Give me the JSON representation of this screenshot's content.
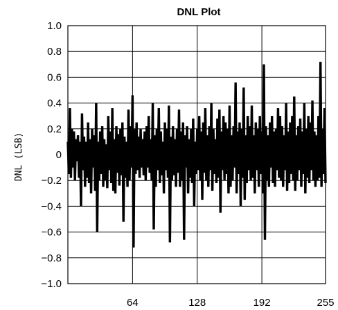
{
  "chart_data": {
    "type": "line",
    "title": "DNL Plot",
    "xlabel": "",
    "ylabel": "DNL (LSB)",
    "xlim": [
      0,
      255
    ],
    "ylim": [
      -1.0,
      1.0
    ],
    "grid": true,
    "legend": "none",
    "x_ticks": [
      {
        "value": 64,
        "label": "64"
      },
      {
        "value": 128,
        "label": "128"
      },
      {
        "value": 192,
        "label": "192"
      },
      {
        "value": 255,
        "label": "255"
      }
    ],
    "y_ticks": [
      {
        "value": 1.0,
        "label": "1.0"
      },
      {
        "value": 0.8,
        "label": "0.8"
      },
      {
        "value": 0.6,
        "label": "0.6"
      },
      {
        "value": 0.4,
        "label": "0.4"
      },
      {
        "value": 0.2,
        "label": "0.2"
      },
      {
        "value": 0,
        "label": "0"
      },
      {
        "value": -0.2,
        "label": "-0.2"
      },
      {
        "value": -0.4,
        "label": "-0.4"
      },
      {
        "value": -0.6,
        "label": "-0.6"
      },
      {
        "value": -0.8,
        "label": "-0.8"
      },
      {
        "value": -1.0,
        "label": "-1.0"
      }
    ],
    "series": [
      {
        "values": [
          0.1,
          -0.15,
          0.36,
          -0.18,
          0.2,
          -0.1,
          0.18,
          -0.2,
          0.12,
          -0.05,
          0.15,
          -0.18,
          0.1,
          -0.4,
          0.32,
          -0.12,
          0.14,
          -0.25,
          0.1,
          -0.18,
          0.25,
          -0.22,
          0.12,
          -0.3,
          0.2,
          -0.1,
          0.15,
          -0.28,
          0.4,
          -0.6,
          0.1,
          -0.2,
          0.18,
          -0.15,
          0.22,
          -0.25,
          0.12,
          -0.2,
          0.08,
          -0.26,
          0.3,
          -0.12,
          0.18,
          -0.22,
          0.36,
          -0.28,
          0.12,
          -0.3,
          0.22,
          -0.14,
          0.16,
          -0.24,
          0.2,
          -0.16,
          0.25,
          -0.52,
          0.14,
          -0.18,
          0.1,
          -0.25,
          0.35,
          -0.2,
          0.22,
          -0.1,
          0.46,
          -0.72,
          0.2,
          -0.15,
          0.25,
          -0.12,
          0.14,
          -0.18,
          0.2,
          -0.1,
          0.12,
          -0.16,
          0.18,
          -0.2,
          0.22,
          -0.1,
          0.3,
          -0.14,
          0.12,
          -0.2,
          0.4,
          -0.58,
          0.15,
          -0.25,
          0.2,
          -0.12,
          0.36,
          -0.22,
          0.18,
          -0.16,
          0.1,
          -0.3,
          0.25,
          -0.12,
          0.2,
          -0.18,
          0.38,
          -0.68,
          0.14,
          -0.2,
          0.22,
          -0.16,
          0.12,
          -0.25,
          0.2,
          -0.14,
          0.35,
          -0.25,
          0.18,
          -0.2,
          0.25,
          -0.66,
          0.15,
          -0.1,
          0.22,
          -0.3,
          0.12,
          -0.18,
          0.2,
          -0.22,
          0.28,
          -0.4,
          0.1,
          -0.15,
          0.2,
          -0.12,
          0.3,
          -0.2,
          0.18,
          -0.35,
          0.25,
          -0.14,
          0.36,
          -0.2,
          0.15,
          -0.25,
          0.22,
          -0.12,
          0.4,
          -0.28,
          0.2,
          -0.15,
          0.12,
          -0.22,
          0.28,
          -0.18,
          0.35,
          -0.45,
          0.18,
          -0.12,
          0.3,
          -0.2,
          0.25,
          -0.15,
          0.2,
          -0.3,
          0.38,
          -0.25,
          0.15,
          -0.2,
          0.22,
          -0.1,
          0.56,
          -0.3,
          0.18,
          -0.15,
          0.25,
          -0.4,
          0.2,
          -0.18,
          0.52,
          -0.35,
          0.15,
          -0.22,
          0.3,
          -0.12,
          0.22,
          -0.2,
          0.38,
          -0.18,
          0.15,
          -0.3,
          0.25,
          -0.12,
          0.2,
          -0.25,
          0.3,
          -0.15,
          0.18,
          -0.3,
          0.7,
          -0.66,
          0.22,
          -0.2,
          0.15,
          -0.25,
          0.25,
          -0.1,
          0.3,
          -0.22,
          0.18,
          -0.25,
          0.2,
          -0.12,
          0.36,
          -0.18,
          0.3,
          -0.2,
          0.22,
          -0.25,
          0.15,
          -0.12,
          0.4,
          -0.28,
          0.18,
          -0.22,
          0.25,
          -0.15,
          0.3,
          -0.2,
          0.45,
          -0.28,
          0.15,
          -0.2,
          0.22,
          -0.12,
          0.28,
          -0.25,
          0.18,
          -0.15,
          0.4,
          -0.3,
          0.2,
          -0.18,
          0.3,
          -0.22,
          0.25,
          -0.12,
          0.42,
          -0.2,
          0.18,
          -0.25,
          0.15,
          -0.2,
          0.3,
          -0.18,
          0.72,
          -0.25,
          0.2,
          -0.15,
          0.36,
          -0.22
        ]
      }
    ]
  }
}
